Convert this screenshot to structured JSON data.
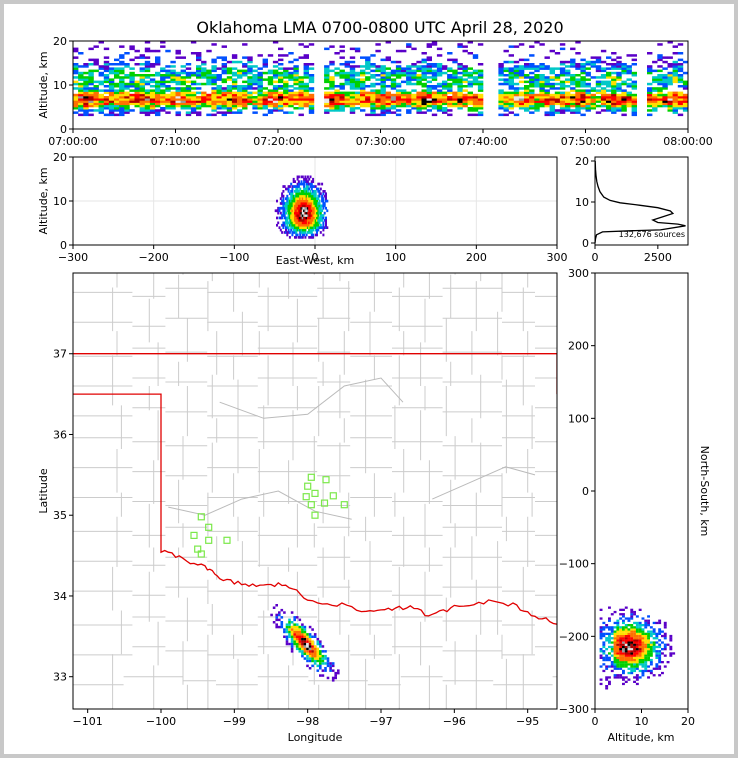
{
  "title": "Oklahoma LMA 0700-0800 UTC April 28, 2020",
  "chart_data": [
    {
      "type": "heatmap",
      "panel": "time-height",
      "ylabel": "Altitude, km",
      "ylim": [
        0,
        20
      ],
      "yticks": [
        "0",
        "10",
        "20"
      ],
      "xticks": [
        "07:00:00",
        "07:10:00",
        "07:20:00",
        "07:30:00",
        "07:40:00",
        "07:50:00",
        "08:00:00"
      ],
      "data_gaps_minutes": [
        [
          23.5,
          24.5
        ],
        [
          40.0,
          41.5
        ],
        [
          55.0,
          55.8
        ]
      ]
    },
    {
      "type": "heatmap",
      "panel": "east-west-altitude",
      "xlabel": "East-West, km",
      "ylabel": "Altitude, km",
      "xlim": [
        -300,
        300
      ],
      "ylim": [
        0,
        20
      ],
      "xticks": [
        "−300",
        "−200",
        "−100",
        "0",
        "100",
        "200",
        "300"
      ],
      "yticks": [
        "0",
        "10",
        "20"
      ],
      "center_km": [
        -15,
        7
      ]
    },
    {
      "type": "line",
      "panel": "altitude-histogram",
      "xticks": [
        "0",
        "2500"
      ],
      "yticks": [
        "0",
        "10",
        "20"
      ],
      "xlim": [
        0,
        3700
      ],
      "ylim": [
        0,
        20
      ],
      "annotation": "132,676 sources",
      "profile": [
        [
          0,
          0
        ],
        [
          20,
          1
        ],
        [
          60,
          2
        ],
        [
          300,
          2.7
        ],
        [
          1500,
          3
        ],
        [
          2600,
          3.2
        ],
        [
          3600,
          4.2
        ],
        [
          3300,
          4.6
        ],
        [
          2500,
          5.0
        ],
        [
          2300,
          5.6
        ],
        [
          2700,
          6.4
        ],
        [
          3100,
          7.2
        ],
        [
          3000,
          7.8
        ],
        [
          2500,
          8.6
        ],
        [
          1800,
          9.2
        ],
        [
          1000,
          9.8
        ],
        [
          600,
          10.4
        ],
        [
          350,
          11.2
        ],
        [
          200,
          12.5
        ],
        [
          120,
          13.8
        ],
        [
          70,
          15
        ],
        [
          40,
          16.5
        ],
        [
          20,
          18
        ],
        [
          8,
          20
        ]
      ]
    },
    {
      "type": "heatmap",
      "panel": "plan-view",
      "xlabel": "Longitude",
      "ylabel": "Latitude",
      "xlim": [
        -101.2,
        -94.6
      ],
      "ylim": [
        32.6,
        38.0
      ],
      "xticks": [
        "−101",
        "−100",
        "−99",
        "−98",
        "−97",
        "−96",
        "−95"
      ],
      "yticks": [
        "33",
        "34",
        "35",
        "36",
        "37"
      ],
      "stations": [
        [
          -97.95,
          35.47
        ],
        [
          -97.75,
          35.44
        ],
        [
          -98.0,
          35.36
        ],
        [
          -97.9,
          35.27
        ],
        [
          -98.02,
          35.23
        ],
        [
          -97.65,
          35.24
        ],
        [
          -97.77,
          35.15
        ],
        [
          -97.5,
          35.13
        ],
        [
          -97.95,
          35.13
        ],
        [
          -97.9,
          35.0
        ],
        [
          -99.45,
          34.98
        ],
        [
          -99.35,
          34.85
        ],
        [
          -99.55,
          34.75
        ],
        [
          -99.35,
          34.69
        ],
        [
          -99.1,
          34.69
        ],
        [
          -99.5,
          34.58
        ],
        [
          -99.45,
          34.52
        ]
      ],
      "storm_center": [
        -98.05,
        33.4
      ]
    },
    {
      "type": "heatmap",
      "panel": "north-south-altitude",
      "xlabel": "Altitude, km",
      "ylabel": "North-South, km",
      "xlim": [
        0,
        20
      ],
      "ylim": [
        -300,
        300
      ],
      "xticks": [
        "0",
        "10",
        "20"
      ],
      "yticks": [
        "−300",
        "−200",
        "−100",
        "0",
        "100",
        "200",
        "300"
      ],
      "center": [
        7,
        -215
      ]
    }
  ]
}
